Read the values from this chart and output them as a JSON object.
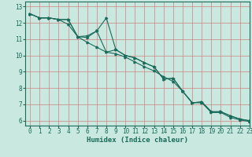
{
  "xlabel": "Humidex (Indice chaleur)",
  "bg_color": "#c8e8e0",
  "grid_color": "#d08080",
  "line_color": "#1a6b5a",
  "xlim": [
    -0.5,
    23
  ],
  "ylim": [
    5.7,
    13.3
  ],
  "xticks": [
    0,
    1,
    2,
    3,
    4,
    5,
    6,
    7,
    8,
    9,
    10,
    11,
    12,
    13,
    14,
    15,
    16,
    17,
    18,
    19,
    20,
    21,
    22,
    23
  ],
  "yticks": [
    6,
    7,
    8,
    9,
    10,
    11,
    12,
    13
  ],
  "series1_x": [
    0,
    1,
    2,
    3,
    4,
    5,
    6,
    7,
    8,
    9,
    10,
    11,
    12,
    13,
    14,
    15,
    16,
    17,
    18,
    19,
    20,
    21,
    22,
    23
  ],
  "series1_y": [
    12.55,
    12.3,
    12.3,
    12.2,
    12.2,
    11.15,
    11.1,
    11.5,
    12.3,
    10.35,
    10.0,
    9.85,
    9.55,
    9.3,
    8.55,
    8.6,
    7.8,
    7.1,
    7.15,
    6.55,
    6.55,
    6.3,
    6.1,
    6.0
  ],
  "series2_x": [
    0,
    1,
    2,
    3,
    4,
    5,
    6,
    7,
    8,
    9,
    10,
    11,
    12,
    13,
    14,
    15,
    16,
    17,
    18,
    19,
    20,
    21,
    22,
    23
  ],
  "series2_y": [
    12.55,
    12.3,
    12.3,
    12.2,
    12.2,
    11.15,
    11.2,
    11.5,
    10.2,
    10.35,
    10.0,
    9.85,
    9.55,
    9.3,
    8.55,
    8.6,
    7.8,
    7.1,
    7.15,
    6.55,
    6.55,
    6.3,
    6.1,
    6.0
  ],
  "series3_x": [
    0,
    1,
    2,
    3,
    4,
    5,
    6,
    7,
    8,
    9,
    10,
    11,
    12,
    13,
    14,
    15,
    16,
    17,
    18,
    19,
    20,
    21,
    22,
    23
  ],
  "series3_y": [
    12.55,
    12.3,
    12.3,
    12.2,
    11.9,
    11.15,
    10.8,
    10.5,
    10.2,
    10.1,
    9.9,
    9.6,
    9.3,
    9.05,
    8.7,
    8.4,
    7.8,
    7.1,
    7.1,
    6.5,
    6.5,
    6.2,
    6.05,
    5.95
  ],
  "tick_fontsize": 5.5,
  "xlabel_fontsize": 6.5,
  "marker_size": 2.0,
  "line_width": 0.8
}
